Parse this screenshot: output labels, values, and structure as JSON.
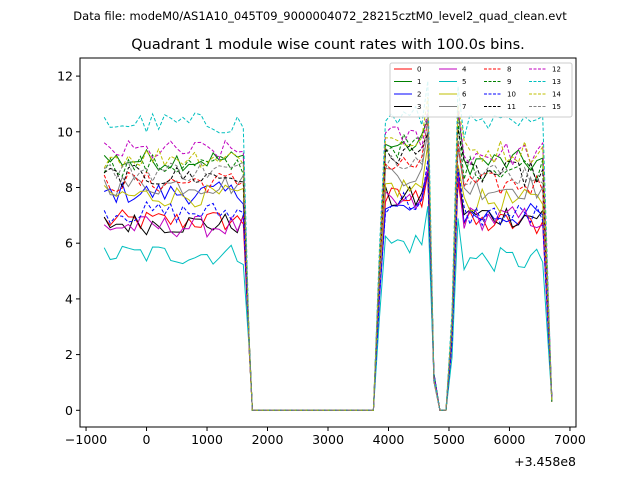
{
  "chart_data": {
    "type": "line",
    "suptitle": "Data file: modeM0/AS1A10_045T09_9000004072_28215cztM0_level2_quad_clean.evt",
    "title": "Quadrant 1 module wise count rates with 100.0s bins.",
    "xlabel": "",
    "ylabel": "",
    "x_offset_label": "+3.458e8",
    "xlim": [
      -1100,
      7100
    ],
    "ylim": [
      -0.6,
      12.65
    ],
    "xticks": [
      -1000,
      0,
      1000,
      2000,
      3000,
      4000,
      5000,
      6000,
      7000
    ],
    "xtick_labels": [
      "−1000",
      "0",
      "1000",
      "2000",
      "3000",
      "4000",
      "5000",
      "6000",
      "7000"
    ],
    "yticks": [
      0,
      2,
      4,
      6,
      8,
      10,
      12
    ],
    "ytick_labels": [
      "0",
      "2",
      "4",
      "6",
      "8",
      "10",
      "12"
    ],
    "grid": false,
    "legend_position": "top-right",
    "legend_columns": 4,
    "series": [
      {
        "name": "0",
        "color": "#ff0000",
        "dash": "solid",
        "level1": 6.8,
        "level2": 7.6,
        "level3": 6.7
      },
      {
        "name": "1",
        "color": "#008000",
        "dash": "solid",
        "level1": 9.0,
        "level2": 9.5,
        "level3": 8.9
      },
      {
        "name": "2",
        "color": "#0000ff",
        "dash": "solid",
        "level1": 7.8,
        "level2": 7.2,
        "level3": 7.0
      },
      {
        "name": "3",
        "color": "#000000",
        "dash": "solid",
        "level1": 6.7,
        "level2": 7.6,
        "level3": 7.0
      },
      {
        "name": "4",
        "color": "#bf00bf",
        "dash": "solid",
        "level1": 6.6,
        "level2": 7.4,
        "level3": 6.9
      },
      {
        "name": "5",
        "color": "#00bfbf",
        "dash": "solid",
        "level1": 5.6,
        "level2": 6.0,
        "level3": 5.4
      },
      {
        "name": "6",
        "color": "#bfbf00",
        "dash": "solid",
        "level1": 7.7,
        "level2": 8.0,
        "level3": 7.5
      },
      {
        "name": "7",
        "color": "#808080",
        "dash": "solid",
        "level1": 8.1,
        "level2": 8.5,
        "level3": 8.0
      },
      {
        "name": "8",
        "color": "#ff0000",
        "dash": "dashed",
        "level1": 8.2,
        "level2": 8.8,
        "level3": 8.1
      },
      {
        "name": "9",
        "color": "#008000",
        "dash": "dashed",
        "level1": 8.8,
        "level2": 9.5,
        "level3": 8.7
      },
      {
        "name": "10",
        "color": "#0000ff",
        "dash": "dashed",
        "level1": 7.1,
        "level2": 7.5,
        "level3": 7.0
      },
      {
        "name": "11",
        "color": "#000000",
        "dash": "dashed",
        "level1": 8.4,
        "level2": 9.2,
        "level3": 8.5
      },
      {
        "name": "12",
        "color": "#bf00bf",
        "dash": "dashed",
        "level1": 9.3,
        "level2": 9.8,
        "level3": 9.2
      },
      {
        "name": "13",
        "color": "#00bfbf",
        "dash": "dashed",
        "level1": 10.3,
        "level2": 10.5,
        "level3": 10.2
      },
      {
        "name": "14",
        "color": "#bfbf00",
        "dash": "dashed",
        "level1": 9.1,
        "level2": 9.7,
        "level3": 9.3
      },
      {
        "name": "15",
        "color": "#808080",
        "dash": "dashed",
        "level1": 8.6,
        "level2": 9.1,
        "level3": 8.5
      }
    ],
    "segments": {
      "seg1": {
        "start": -700,
        "end": 1600,
        "step": 100
      },
      "drop1": [
        1600,
        1700,
        1750
      ],
      "zero": {
        "start": 1750,
        "end": 3750
      },
      "seg2": {
        "start": 3750,
        "end": 4650
      },
      "seg3": {
        "start": 4950,
        "end": 6700
      }
    }
  }
}
